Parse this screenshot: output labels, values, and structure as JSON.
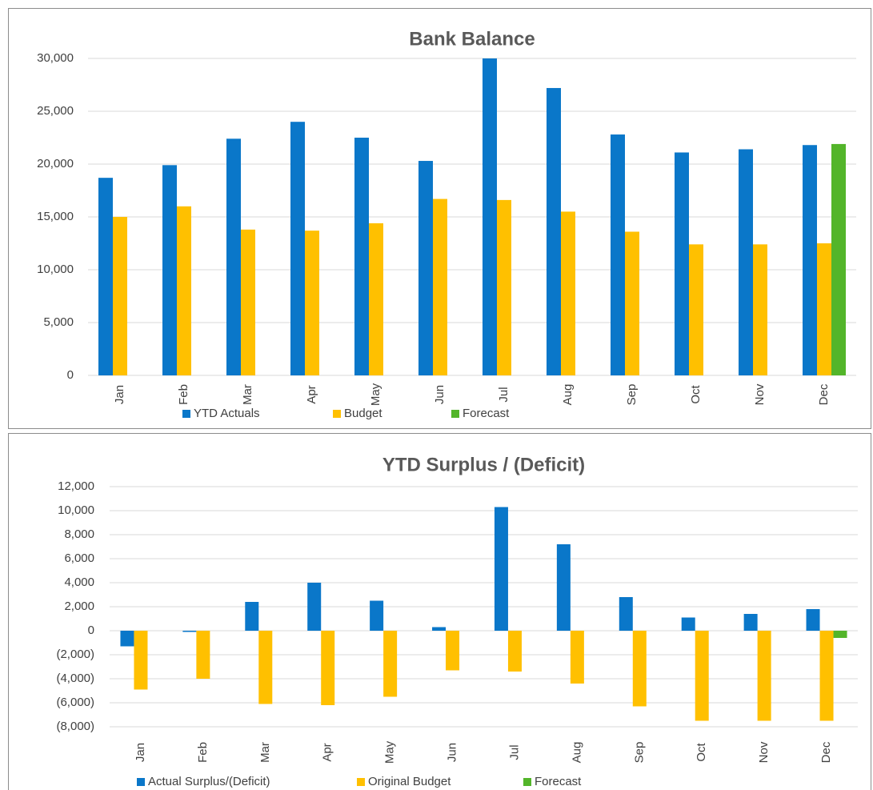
{
  "chart_data": [
    {
      "type": "bar",
      "title": "Bank Balance",
      "categories": [
        "Jan",
        "Feb",
        "Mar",
        "Apr",
        "May",
        "Jun",
        "Jul",
        "Aug",
        "Sep",
        "Oct",
        "Nov",
        "Dec"
      ],
      "series": [
        {
          "name": "YTD Actuals",
          "color": "#0a77c9",
          "values": [
            18700,
            19900,
            22400,
            24000,
            22500,
            20300,
            30000,
            27200,
            22800,
            21100,
            21400,
            21800
          ]
        },
        {
          "name": "Budget",
          "color": "#ffc000",
          "values": [
            15000,
            16000,
            13800,
            13700,
            14400,
            16700,
            16600,
            15500,
            13600,
            12400,
            12400,
            12500
          ]
        },
        {
          "name": "Forecast",
          "color": "#53b52a",
          "values": [
            null,
            null,
            null,
            null,
            null,
            null,
            null,
            null,
            null,
            null,
            null,
            21900
          ]
        }
      ],
      "ylim": [
        0,
        30000
      ],
      "yticks": [
        0,
        {
          "value": 5000,
          "label": "5,000"
        },
        {
          "value": 10000,
          "label": "10,000"
        },
        {
          "value": 15000,
          "label": "15,000"
        },
        {
          "value": 20000,
          "label": "20,000"
        },
        {
          "value": 25000,
          "label": "25,000"
        },
        {
          "value": 30000,
          "label": "30,000"
        }
      ],
      "grid": true,
      "legend": "bottom"
    },
    {
      "type": "bar",
      "title": "YTD Surplus / (Deficit)",
      "categories": [
        "Jan",
        "Feb",
        "Mar",
        "Apr",
        "May",
        "Jun",
        "Jul",
        "Aug",
        "Sep",
        "Oct",
        "Nov",
        "Dec"
      ],
      "series": [
        {
          "name": "Actual Surplus/(Deficit)",
          "color": "#0a77c9",
          "values": [
            -1300,
            -100,
            2400,
            4000,
            2500,
            300,
            10300,
            7200,
            2800,
            1100,
            1400,
            1800
          ]
        },
        {
          "name": "Original Budget",
          "color": "#ffc000",
          "values": [
            -4900,
            -4000,
            -6100,
            -6200,
            -5500,
            -3300,
            -3400,
            -4400,
            -6300,
            -7500,
            -7500,
            -7500
          ]
        },
        {
          "name": "Forecast",
          "color": "#53b52a",
          "values": [
            null,
            null,
            null,
            null,
            null,
            null,
            null,
            null,
            null,
            null,
            null,
            -600
          ]
        }
      ],
      "ylim": [
        -8000,
        12000
      ],
      "yticks": [
        {
          "value": -8000,
          "label": "(8,000)"
        },
        {
          "value": -6000,
          "label": "(6,000)"
        },
        {
          "value": -4000,
          "label": "(4,000)"
        },
        {
          "value": -2000,
          "label": "(2,000)"
        },
        0,
        {
          "value": 2000,
          "label": "2,000"
        },
        {
          "value": 4000,
          "label": "4,000"
        },
        {
          "value": 6000,
          "label": "6,000"
        },
        {
          "value": 8000,
          "label": "8,000"
        },
        {
          "value": 10000,
          "label": "10,000"
        },
        {
          "value": 12000,
          "label": "12,000"
        }
      ],
      "grid": true,
      "legend": "bottom"
    }
  ]
}
